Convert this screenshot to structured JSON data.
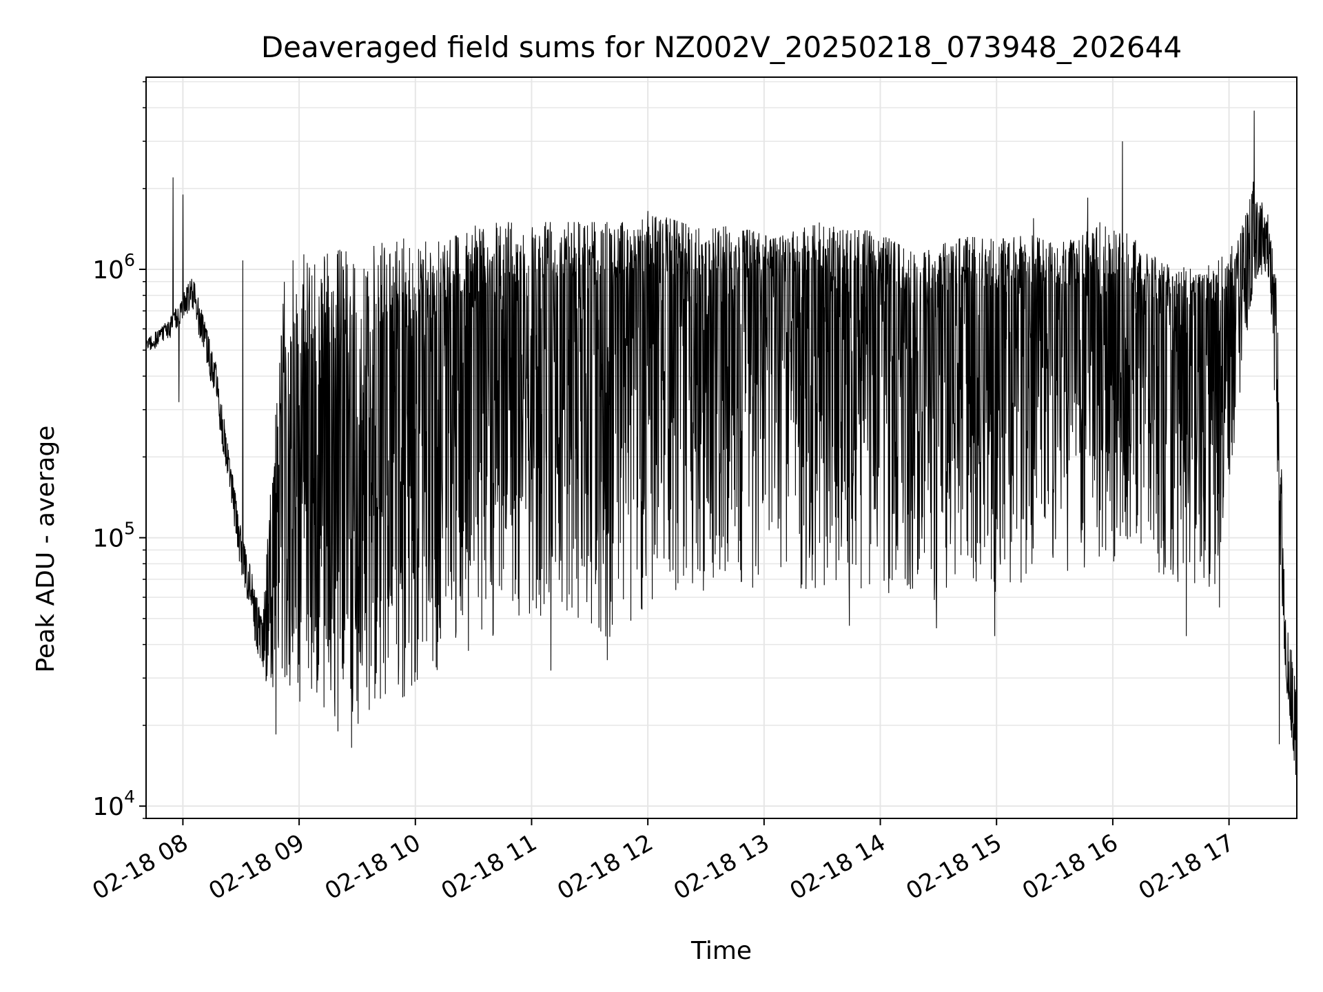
{
  "chart_data": {
    "type": "line",
    "title": "Deaveraged field sums for NZ002V_20250218_073948_202644",
    "xlabel": "Time",
    "ylabel": "Peak ADU - average",
    "x_start": "02-18 07:41",
    "x_end": "02-18 17:35",
    "xlim": [
      "02-18 07:41",
      "02-18 17:35"
    ],
    "ylim": [
      9000,
      5200000
    ],
    "yscale": "log",
    "grid": true,
    "x_tick_labels": [
      "02-18 08",
      "02-18 09",
      "02-18 10",
      "02-18 11",
      "02-18 12",
      "02-18 13",
      "02-18 14",
      "02-18 15",
      "02-18 16",
      "02-18 17"
    ],
    "x_tick_hours": [
      8,
      9,
      10,
      11,
      12,
      13,
      14,
      15,
      16,
      17
    ],
    "y_major_ticks": [
      {
        "value": 10000,
        "base": "10",
        "exp": "4"
      },
      {
        "value": 100000,
        "base": "10",
        "exp": "5"
      },
      {
        "value": 1000000,
        "base": "10",
        "exp": "6"
      }
    ],
    "series": [
      {
        "color": "#000000",
        "envelope": {
          "x": [
            "02-18 07:41",
            "02-18 07:53",
            "02-18 08:05",
            "02-18 08:17",
            "02-18 08:29",
            "02-18 08:41",
            "02-18 08:53",
            "02-18 09:05",
            "02-18 09:17",
            "02-18 09:29",
            "02-18 09:41",
            "02-18 09:53",
            "02-18 10:05",
            "02-18 10:17",
            "02-18 10:29",
            "02-18 10:41",
            "02-18 10:53",
            "02-18 11:05",
            "02-18 11:17",
            "02-18 11:29",
            "02-18 11:41",
            "02-18 11:53",
            "02-18 12:05",
            "02-18 12:17",
            "02-18 12:29",
            "02-18 12:41",
            "02-18 12:53",
            "02-18 13:05",
            "02-18 13:17",
            "02-18 13:29",
            "02-18 13:41",
            "02-18 13:53",
            "02-18 14:05",
            "02-18 14:17",
            "02-18 14:29",
            "02-18 14:41",
            "02-18 14:53",
            "02-18 15:05",
            "02-18 15:17",
            "02-18 15:29",
            "02-18 15:41",
            "02-18 15:53",
            "02-18 16:05",
            "02-18 16:17",
            "02-18 16:29",
            "02-18 16:41",
            "02-18 16:53",
            "02-18 17:05",
            "02-18 17:13",
            "02-18 17:17",
            "02-18 17:21",
            "02-18 17:25",
            "02-18 17:29",
            "02-18 17:35"
          ],
          "upper": [
            550000,
            650000,
            950000,
            450000,
            120000,
            50000,
            1100000,
            1150000,
            1200000,
            1200000,
            1250000,
            1300000,
            1350000,
            1400000,
            1450000,
            1500000,
            1500000,
            1500000,
            1500000,
            1500000,
            1500000,
            1500000,
            1600000,
            1500000,
            1400000,
            1450000,
            1400000,
            1300000,
            1400000,
            1500000,
            1400000,
            1400000,
            1300000,
            1150000,
            1200000,
            1350000,
            1300000,
            1300000,
            1350000,
            1250000,
            1300000,
            1500000,
            1400000,
            1200000,
            1050000,
            1000000,
            1050000,
            1300000,
            2200000,
            1800000,
            1500000,
            900000,
            50000,
            40000
          ],
          "lower": [
            480000,
            550000,
            700000,
            320000,
            80000,
            30000,
            24000,
            22000,
            21000,
            20000,
            22000,
            25000,
            30000,
            33000,
            38000,
            42000,
            44000,
            45000,
            46000,
            42000,
            42000,
            48000,
            60000,
            60000,
            60000,
            62000,
            60000,
            70000,
            62000,
            60000,
            60000,
            62000,
            62000,
            58000,
            55000,
            60000,
            60000,
            65000,
            68000,
            70000,
            75000,
            80000,
            80000,
            75000,
            70000,
            65000,
            65000,
            300000,
            900000,
            950000,
            900000,
            150000,
            30000,
            12000
          ],
          "center": [
            520000,
            600000,
            800000,
            380000,
            100000,
            40000,
            150000,
            160000,
            170000,
            160000,
            200000,
            240000,
            280000,
            320000,
            380000,
            420000,
            480000,
            500000,
            520000,
            500000,
            480000,
            520000,
            600000,
            580000,
            560000,
            580000,
            560000,
            620000,
            580000,
            560000,
            540000,
            560000,
            520000,
            480000,
            460000,
            500000,
            500000,
            520000,
            540000,
            520000,
            520000,
            560000,
            560000,
            500000,
            460000,
            440000,
            440000,
            800000,
            1200000,
            1200000,
            1100000,
            400000,
            38000,
            14000
          ]
        },
        "spikes": [
          {
            "x": "02-18 07:55",
            "y": 2200000
          },
          {
            "x": "02-18 07:58",
            "y": 320000
          },
          {
            "x": "02-18 08:00",
            "y": 1900000
          },
          {
            "x": "02-18 08:31",
            "y": 1080000
          },
          {
            "x": "02-18 08:48",
            "y": 18500
          },
          {
            "x": "02-18 09:20",
            "y": 19000
          },
          {
            "x": "02-18 09:27",
            "y": 16500
          },
          {
            "x": "02-18 11:10",
            "y": 32000
          },
          {
            "x": "02-18 11:39",
            "y": 35000
          },
          {
            "x": "02-18 12:00",
            "y": 1650000
          },
          {
            "x": "02-18 13:44",
            "y": 47000
          },
          {
            "x": "02-18 14:29",
            "y": 46000
          },
          {
            "x": "02-18 14:59",
            "y": 43000
          },
          {
            "x": "02-18 15:19",
            "y": 1550000
          },
          {
            "x": "02-18 15:47",
            "y": 1850000
          },
          {
            "x": "02-18 16:05",
            "y": 3000000
          },
          {
            "x": "02-18 16:38",
            "y": 43000
          },
          {
            "x": "02-18 16:55",
            "y": 55000
          },
          {
            "x": "02-18 17:13",
            "y": 3900000
          },
          {
            "x": "02-18 17:20",
            "y": 1600000
          },
          {
            "x": "02-18 17:26",
            "y": 17000
          }
        ]
      }
    ]
  }
}
